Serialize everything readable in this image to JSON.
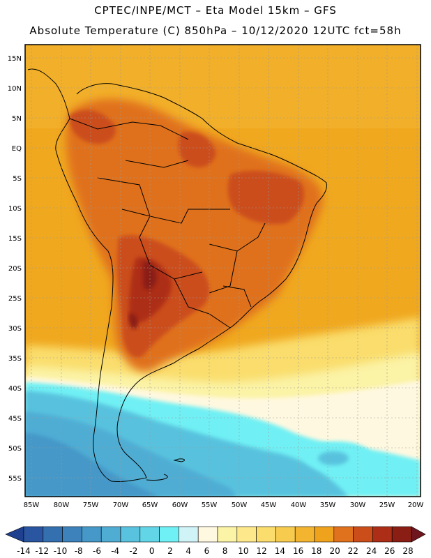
{
  "header": {
    "line1": "CPTEC/INPE/MCT –  Eta Model 15km – GFS",
    "line2": "Absolute Temperature (C) 850hPa – 10/12/2020 12UTC fct=58h"
  },
  "map": {
    "lat_labels": [
      "15N",
      "10N",
      "5N",
      "EQ",
      "5S",
      "10S",
      "15S",
      "20S",
      "25S",
      "30S",
      "35S",
      "40S",
      "45S",
      "50S",
      "55S"
    ],
    "lon_labels": [
      "85W",
      "80W",
      "75W",
      "70W",
      "65W",
      "60W",
      "55W",
      "50W",
      "45W",
      "40W",
      "35W",
      "30W",
      "25W",
      "20W"
    ]
  },
  "colorbar": {
    "ticks": [
      "-14",
      "-12",
      "-10",
      "-8",
      "-6",
      "-4",
      "-2",
      "0",
      "2",
      "4",
      "6",
      "8",
      "10",
      "12",
      "14",
      "16",
      "18",
      "20",
      "22",
      "24",
      "26",
      "28"
    ],
    "colors": [
      "#1f3f8f",
      "#2a55a0",
      "#3470b0",
      "#3d82bb",
      "#4598c8",
      "#4fadd4",
      "#59c2de",
      "#62d6e6",
      "#6ff0f4",
      "#cff3f7",
      "#fff8e0",
      "#fbf3a6",
      "#fde98c",
      "#fadd6c",
      "#f6cb4e",
      "#f3b430",
      "#efa21c",
      "#e0711d",
      "#cb4e1a",
      "#ad2e17",
      "#8a1e14",
      "#6e151e"
    ]
  }
}
